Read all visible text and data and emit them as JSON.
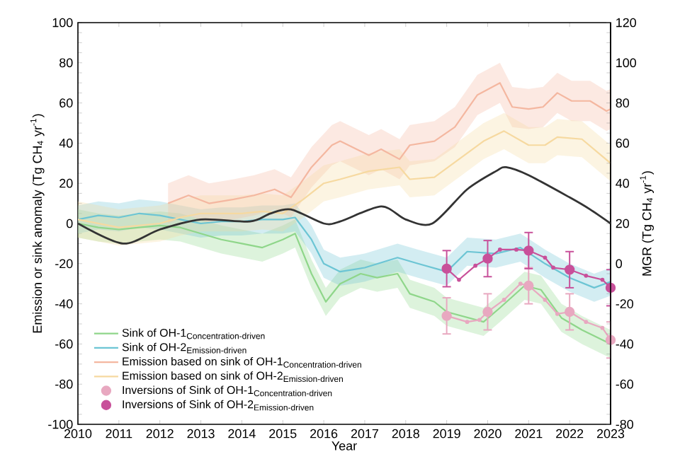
{
  "chart_data": {
    "type": "line",
    "xlabel": "Year",
    "ylabel": "Emission or sink anomaly (Tg CH$_{4}$ yr$^{-1}$)",
    "y2label": "MGR (Tg CH$_{4}$ yr$^{-1}$)",
    "xlim": [
      2010,
      2023
    ],
    "xticks": [
      2010,
      2011,
      2012,
      2013,
      2014,
      2015,
      2016,
      2017,
      2018,
      2019,
      2020,
      2021,
      2022,
      2023
    ],
    "ylim": [
      -100,
      100
    ],
    "yticks": [
      -100,
      -80,
      -60,
      -40,
      -20,
      0,
      20,
      40,
      60,
      80,
      100
    ],
    "y2lim": [
      -80,
      120
    ],
    "y2ticks": [
      -80,
      -60,
      -40,
      -20,
      0,
      20,
      40,
      60,
      80,
      100,
      120
    ],
    "legend": "bottom left",
    "series": [
      {
        "name": "\\text{Sink of OH-1}_{\\text{Concentration-driven}}",
        "color": "#8fd68a",
        "x": [
          2010,
          2010.5,
          2011,
          2011.5,
          2012,
          2012.5,
          2013,
          2013.5,
          2014,
          2014.5,
          2015,
          2015.3,
          2015.7,
          2016.05,
          2016.4,
          2016.9,
          2017.3,
          2017.8,
          2018.1,
          2018.7,
          2019.0,
          2019.9,
          2020.3,
          2020.9,
          2021.3,
          2021.8,
          2022.3,
          2022.9,
          2023
        ],
        "values": [
          0,
          -2,
          -3,
          -2,
          -1,
          -2,
          -5,
          -8,
          -10,
          -12,
          -8,
          -5,
          -25,
          -39,
          -30,
          -25,
          -27,
          -25,
          -35,
          -39,
          -44,
          -49,
          -42,
          -31,
          -33,
          -47,
          -53,
          -59,
          -60
        ],
        "lower": [
          -7,
          -9,
          -10,
          -9,
          -8,
          -9,
          -12,
          -15,
          -17,
          -19,
          -15,
          -12,
          -32,
          -46,
          -37,
          -32,
          -34,
          -32,
          -42,
          -46,
          -51,
          -56,
          -49,
          -38,
          -40,
          -54,
          -60,
          -66,
          -67
        ],
        "upper": [
          7,
          5,
          4,
          5,
          6,
          5,
          2,
          -1,
          -3,
          -5,
          -1,
          2,
          -18,
          -32,
          -23,
          -18,
          -20,
          -18,
          -28,
          -32,
          -37,
          -42,
          -35,
          -24,
          -26,
          -40,
          -46,
          -52,
          -53
        ]
      },
      {
        "name": "\\text{Sink of OH-2}_{\\text{Emission-driven}}",
        "color": "#6cc5d4",
        "x": [
          2010,
          2010.5,
          2011,
          2011.5,
          2012,
          2012.5,
          2013,
          2013.5,
          2014,
          2014.5,
          2015,
          2015.3,
          2015.7,
          2016,
          2016.4,
          2017.0,
          2017.8,
          2018.3,
          2019,
          2019.5,
          2020.2,
          2020.8,
          2021.4,
          2022,
          2022.6,
          2023
        ],
        "values": [
          2,
          4,
          3,
          5,
          4,
          2,
          0,
          1,
          1,
          2,
          2,
          3,
          -8,
          -20,
          -24,
          -22,
          -17,
          -20,
          -24,
          -14,
          -15,
          -12,
          -20,
          -27,
          -32,
          -29
        ],
        "lower": [
          -5,
          -3,
          -4,
          -2,
          -3,
          -5,
          -7,
          -6,
          -6,
          -5,
          -5,
          -4,
          -15,
          -27,
          -31,
          -29,
          -24,
          -27,
          -31,
          -21,
          -22,
          -19,
          -27,
          -34,
          -39,
          -36
        ],
        "upper": [
          9,
          11,
          10,
          12,
          11,
          9,
          7,
          8,
          8,
          9,
          9,
          10,
          -1,
          -13,
          -17,
          -15,
          -10,
          -13,
          -17,
          -7,
          -8,
          -5,
          -13,
          -20,
          -25,
          -22
        ]
      },
      {
        "name": "\\text{Emission based on sink of OH-1}_{\\text{Concentration-driven}}",
        "color": "#f4b7a0",
        "x": [
          2012.2,
          2012.7,
          2013.2,
          2013.8,
          2014.3,
          2014.8,
          2015.2,
          2015.7,
          2016.2,
          2016.4,
          2017.1,
          2017.4,
          2017.85,
          2018.1,
          2018.7,
          2019.2,
          2019.75,
          2020.3,
          2020.6,
          2021.0,
          2021.35,
          2021.7,
          2022.05,
          2022.5,
          2022.9,
          2023
        ],
        "values": [
          10,
          14,
          10,
          12,
          14,
          17,
          13,
          28,
          39,
          41,
          34,
          37,
          32,
          39,
          41,
          48,
          64,
          70,
          58,
          57,
          58,
          65,
          61,
          61,
          56,
          57
        ],
        "lower": [
          0,
          4,
          0,
          2,
          4,
          7,
          3,
          18,
          29,
          31,
          24,
          27,
          22,
          29,
          31,
          38,
          54,
          60,
          48,
          47,
          48,
          55,
          51,
          51,
          46,
          47
        ],
        "upper": [
          20,
          24,
          20,
          22,
          24,
          27,
          23,
          38,
          49,
          51,
          44,
          47,
          42,
          49,
          51,
          58,
          74,
          80,
          68,
          67,
          68,
          75,
          71,
          71,
          66,
          67
        ]
      },
      {
        "name": "\\text{Emission based on sink of OH-2}_{\\text{Emission-driven}}",
        "color": "#f6d9a0",
        "x": [
          2010,
          2011,
          2012,
          2012.5,
          2013,
          2014,
          2014.5,
          2015,
          2015.5,
          2016,
          2016.4,
          2017.1,
          2017.85,
          2018.1,
          2018.7,
          2019.3,
          2019.9,
          2020.4,
          2021.0,
          2021.4,
          2021.7,
          2022.3,
          2023
        ],
        "values": [
          2,
          -2,
          0,
          3,
          5,
          5,
          6,
          5,
          12,
          20,
          22,
          26,
          28,
          22,
          23,
          32,
          41,
          46,
          39,
          39,
          43,
          42,
          30
        ],
        "lower": [
          -7,
          -11,
          -9,
          -6,
          -4,
          -4,
          -3,
          -4,
          3,
          11,
          13,
          17,
          19,
          13,
          14,
          23,
          32,
          37,
          30,
          30,
          34,
          33,
          21
        ],
        "upper": [
          11,
          7,
          9,
          12,
          14,
          14,
          15,
          14,
          21,
          29,
          31,
          35,
          37,
          31,
          32,
          41,
          50,
          55,
          48,
          48,
          52,
          51,
          39
        ]
      },
      {
        "name": "\\text{Inversions of Sink of OH-1}_{\\text{Concentration-driven}}",
        "type": "scatter",
        "marker": "circle",
        "color": "#e8a8c0",
        "x": [
          2019,
          2020,
          2021,
          2022,
          2023
        ],
        "values": [
          -46,
          -44,
          -31,
          -44,
          -58
        ],
        "errors": [
          9,
          9,
          9,
          9,
          9
        ]
      },
      {
        "name": "\\text{Inversions of Sink of OH-2}_{\\text{Emission-driven}}",
        "type": "scatter",
        "marker": "circle",
        "color": "#c8509a",
        "x": [
          2019,
          2020,
          2021,
          2022,
          2023
        ],
        "values": [
          -22.5,
          -17.5,
          -13.5,
          -23,
          -32
        ],
        "errors": [
          9,
          9,
          9,
          9,
          9
        ]
      },
      {
        "marker": "circle",
        "color": "#e8a8c0",
        "x": [
          2019,
          2019.5,
          2019.8,
          2020,
          2020.4,
          2020.8,
          2021,
          2021.4,
          2021.7,
          2022,
          2022.4,
          2022.8,
          2023
        ],
        "values": [
          -46,
          -49,
          -48,
          -44,
          -38,
          -30,
          -31,
          -38,
          -45,
          -44,
          -49,
          -52,
          -58
        ]
      },
      {
        "marker": "circle",
        "color": "#c8509a",
        "x": [
          2019,
          2019.3,
          2019.7,
          2020,
          2020.3,
          2020.7,
          2021,
          2021.4,
          2021.6,
          2022,
          2022.4,
          2022.8,
          2023
        ],
        "values": [
          -22.5,
          -28,
          -21,
          -17.5,
          -13,
          -13,
          -13.5,
          -17,
          -22,
          -23,
          -26,
          -28,
          -32
        ]
      },
      {
        "axis": "y2",
        "color": "#333333",
        "x": [
          2010,
          2011.1,
          2012,
          2013,
          2014.2,
          2014.7,
          2015.2,
          2016,
          2016.4,
          2017.4,
          2018,
          2018.65,
          2019.5,
          2020.2,
          2020.45,
          2021,
          2022,
          2022.5,
          2023
        ],
        "values": [
          20,
          10,
          17,
          22,
          21,
          25,
          27,
          20,
          21,
          28.5,
          22,
          20,
          37,
          46,
          48,
          44,
          33,
          27,
          20
        ]
      }
    ]
  }
}
